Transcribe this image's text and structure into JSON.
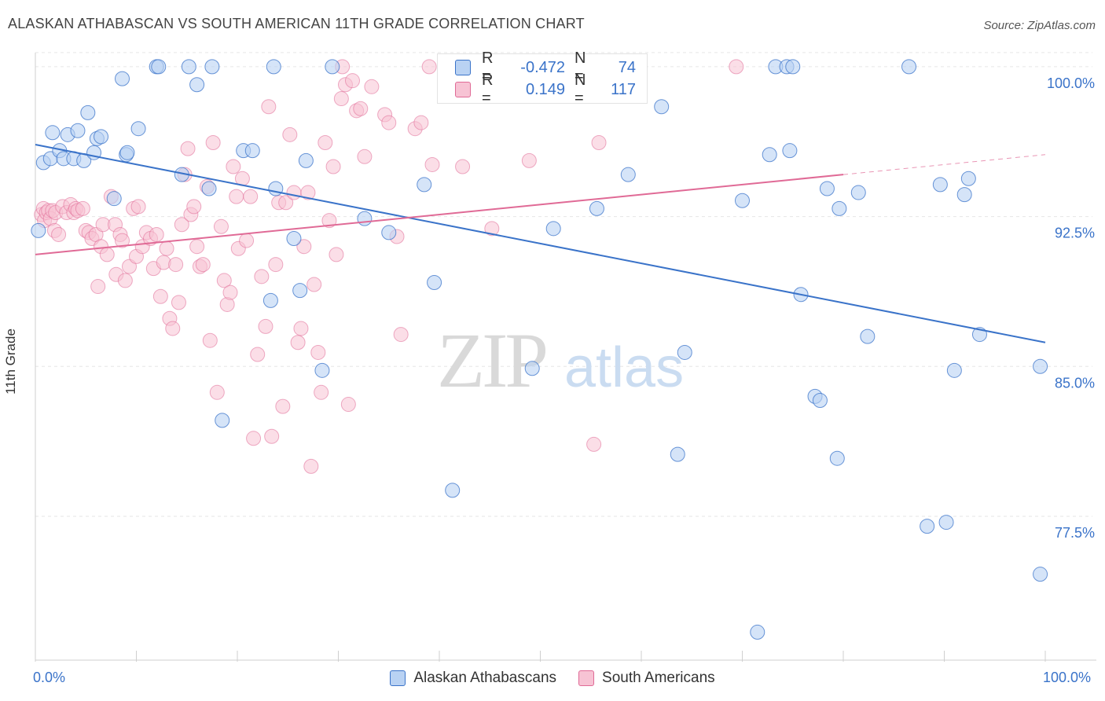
{
  "title": "ALASKAN ATHABASCAN VS SOUTH AMERICAN 11TH GRADE CORRELATION CHART",
  "source": "Source: ZipAtlas.com",
  "colors": {
    "blue": "#3a73c9",
    "blue_fill": "#b9d2f3",
    "pink": "#e06a96",
    "pink_fill": "#f7c3d4",
    "grid": "#e6e6e6"
  },
  "legend": {
    "series": [
      {
        "name": "Alaskan Athabascans",
        "r_label": "R =",
        "r_value": "-0.472",
        "n_label": "N =",
        "n_value": "74"
      },
      {
        "name": "South Americans",
        "r_label": "R =",
        "r_value": "0.149",
        "n_label": "N =",
        "n_value": "117"
      }
    ]
  },
  "chart_data": {
    "type": "scatter",
    "ylabel": "11th Grade",
    "xlim": [
      0,
      100
    ],
    "ylim": [
      70.3,
      100.9
    ],
    "x_tick_labels": [
      "0.0%",
      "100.0%"
    ],
    "y_ticks": [
      77.5,
      85.0,
      92.5,
      100.0
    ],
    "y_tick_labels": [
      "77.5%",
      "85.0%",
      "92.5%",
      "100.0%"
    ],
    "watermark": {
      "zip": "ZIP",
      "atlas": "atlas"
    },
    "series": [
      {
        "name": "Alaskan Athabascans",
        "trend": {
          "x": [
            0,
            100
          ],
          "y": [
            96.1,
            86.2
          ]
        },
        "points": [
          [
            0.3,
            91.8
          ],
          [
            0.8,
            95.2
          ],
          [
            1.5,
            95.4
          ],
          [
            1.7,
            96.7
          ],
          [
            2.4,
            95.8
          ],
          [
            2.8,
            95.4
          ],
          [
            3.2,
            96.6
          ],
          [
            3.8,
            95.4
          ],
          [
            4.2,
            96.8
          ],
          [
            4.8,
            95.3
          ],
          [
            5.2,
            97.7
          ],
          [
            5.8,
            95.7
          ],
          [
            6.1,
            96.4
          ],
          [
            6.5,
            96.5
          ],
          [
            7.8,
            93.4
          ],
          [
            8.6,
            99.4
          ],
          [
            9.0,
            95.6
          ],
          [
            9.1,
            95.7
          ],
          [
            10.2,
            96.9
          ],
          [
            12.0,
            100.0
          ],
          [
            12.2,
            100.0
          ],
          [
            14.5,
            94.6
          ],
          [
            15.2,
            100.0
          ],
          [
            16.0,
            99.1
          ],
          [
            17.2,
            93.9
          ],
          [
            17.5,
            100.0
          ],
          [
            18.5,
            82.3
          ],
          [
            20.6,
            95.8
          ],
          [
            21.5,
            95.8
          ],
          [
            23.3,
            88.3
          ],
          [
            23.6,
            100.0
          ],
          [
            23.8,
            93.9
          ],
          [
            25.6,
            91.4
          ],
          [
            26.2,
            88.8
          ],
          [
            26.8,
            95.3
          ],
          [
            28.4,
            84.8
          ],
          [
            29.4,
            100.0
          ],
          [
            32.6,
            92.4
          ],
          [
            35.0,
            91.7
          ],
          [
            38.5,
            94.1
          ],
          [
            39.5,
            89.2
          ],
          [
            41.3,
            78.8
          ],
          [
            49.2,
            84.9
          ],
          [
            51.3,
            91.9
          ],
          [
            55.6,
            92.9
          ],
          [
            58.7,
            94.6
          ],
          [
            62.0,
            98.0
          ],
          [
            63.6,
            80.6
          ],
          [
            64.3,
            85.7
          ],
          [
            70.0,
            93.3
          ],
          [
            71.5,
            71.7
          ],
          [
            72.7,
            95.6
          ],
          [
            73.3,
            100.0
          ],
          [
            74.4,
            100.0
          ],
          [
            74.7,
            95.8
          ],
          [
            75.0,
            100.0
          ],
          [
            75.8,
            88.6
          ],
          [
            77.2,
            83.5
          ],
          [
            77.7,
            83.3
          ],
          [
            78.4,
            93.9
          ],
          [
            79.4,
            80.4
          ],
          [
            79.6,
            92.9
          ],
          [
            81.5,
            93.7
          ],
          [
            82.4,
            86.5
          ],
          [
            86.5,
            100.0
          ],
          [
            88.3,
            77.0
          ],
          [
            89.6,
            94.1
          ],
          [
            90.2,
            77.2
          ],
          [
            91.0,
            84.8
          ],
          [
            92.0,
            93.6
          ],
          [
            92.4,
            94.4
          ],
          [
            93.5,
            86.6
          ],
          [
            99.5,
            85.0
          ],
          [
            99.5,
            74.6
          ]
        ]
      },
      {
        "name": "South Americans",
        "trend": {
          "x": [
            0,
            80
          ],
          "y": [
            90.6,
            94.6
          ]
        },
        "trend_dashed": {
          "x": [
            80,
            100
          ],
          "y": [
            94.6,
            95.6
          ]
        },
        "points": [
          [
            0.6,
            92.6
          ],
          [
            0.8,
            92.9
          ],
          [
            0.9,
            92.3
          ],
          [
            1.1,
            92.7
          ],
          [
            1.3,
            92.8
          ],
          [
            1.5,
            92.4
          ],
          [
            1.7,
            92.8
          ],
          [
            1.9,
            91.8
          ],
          [
            2.0,
            92.7
          ],
          [
            2.3,
            91.6
          ],
          [
            2.7,
            93.0
          ],
          [
            3.1,
            92.7
          ],
          [
            3.5,
            93.1
          ],
          [
            3.8,
            92.7
          ],
          [
            4.0,
            92.9
          ],
          [
            4.2,
            92.8
          ],
          [
            4.7,
            92.9
          ],
          [
            5.0,
            91.8
          ],
          [
            5.3,
            91.7
          ],
          [
            5.6,
            91.4
          ],
          [
            6.0,
            91.6
          ],
          [
            6.2,
            89.0
          ],
          [
            6.5,
            91.0
          ],
          [
            6.7,
            92.1
          ],
          [
            7.1,
            90.6
          ],
          [
            7.5,
            93.5
          ],
          [
            7.9,
            92.1
          ],
          [
            8.0,
            89.6
          ],
          [
            8.4,
            91.6
          ],
          [
            8.6,
            91.3
          ],
          [
            8.9,
            89.3
          ],
          [
            9.3,
            90.0
          ],
          [
            9.7,
            92.9
          ],
          [
            10.0,
            90.5
          ],
          [
            10.2,
            93.0
          ],
          [
            10.6,
            91.0
          ],
          [
            11.0,
            91.7
          ],
          [
            11.4,
            91.4
          ],
          [
            11.7,
            89.9
          ],
          [
            12.0,
            91.6
          ],
          [
            12.4,
            88.5
          ],
          [
            12.7,
            90.2
          ],
          [
            13.0,
            90.9
          ],
          [
            13.3,
            87.4
          ],
          [
            13.6,
            86.9
          ],
          [
            13.9,
            90.1
          ],
          [
            14.2,
            88.2
          ],
          [
            14.5,
            92.1
          ],
          [
            14.8,
            94.6
          ],
          [
            15.1,
            95.9
          ],
          [
            15.4,
            92.6
          ],
          [
            15.7,
            93.0
          ],
          [
            16.0,
            91.0
          ],
          [
            16.3,
            90.0
          ],
          [
            16.6,
            90.1
          ],
          [
            17.0,
            94.0
          ],
          [
            17.3,
            86.3
          ],
          [
            17.6,
            96.2
          ],
          [
            18.0,
            83.7
          ],
          [
            18.4,
            92.0
          ],
          [
            18.7,
            89.3
          ],
          [
            19.0,
            88.1
          ],
          [
            19.3,
            88.7
          ],
          [
            19.6,
            95.0
          ],
          [
            19.9,
            93.5
          ],
          [
            20.1,
            90.9
          ],
          [
            20.5,
            94.4
          ],
          [
            20.9,
            91.3
          ],
          [
            21.3,
            93.5
          ],
          [
            21.6,
            81.4
          ],
          [
            22.0,
            85.6
          ],
          [
            22.4,
            89.5
          ],
          [
            22.8,
            87.0
          ],
          [
            23.1,
            98.0
          ],
          [
            23.4,
            81.5
          ],
          [
            23.8,
            90.1
          ],
          [
            24.1,
            93.2
          ],
          [
            24.5,
            83.0
          ],
          [
            24.8,
            93.2
          ],
          [
            25.2,
            96.6
          ],
          [
            25.6,
            93.7
          ],
          [
            26.0,
            86.2
          ],
          [
            26.3,
            86.9
          ],
          [
            26.6,
            91.0
          ],
          [
            27.0,
            93.7
          ],
          [
            27.3,
            80.0
          ],
          [
            27.6,
            89.1
          ],
          [
            28.0,
            85.7
          ],
          [
            28.3,
            83.7
          ],
          [
            28.7,
            96.2
          ],
          [
            29.1,
            92.3
          ],
          [
            29.5,
            95.0
          ],
          [
            29.8,
            90.6
          ],
          [
            30.3,
            98.4
          ],
          [
            30.7,
            99.1
          ],
          [
            31.0,
            83.1
          ],
          [
            31.4,
            99.3
          ],
          [
            31.8,
            97.8
          ],
          [
            32.2,
            97.9
          ],
          [
            32.6,
            95.5
          ],
          [
            33.3,
            99.0
          ],
          [
            34.6,
            97.6
          ],
          [
            35.0,
            97.2
          ],
          [
            35.8,
            91.5
          ],
          [
            36.2,
            86.6
          ],
          [
            37.6,
            96.9
          ],
          [
            38.2,
            97.2
          ],
          [
            39.3,
            95.1
          ],
          [
            42.3,
            95.0
          ],
          [
            45.2,
            91.9
          ],
          [
            47.4,
            100.0
          ],
          [
            48.9,
            95.3
          ],
          [
            55.3,
            81.1
          ],
          [
            55.8,
            96.2
          ],
          [
            69.4,
            100.0
          ],
          [
            39.0,
            100.0
          ],
          [
            30.4,
            100.0
          ]
        ]
      }
    ]
  }
}
